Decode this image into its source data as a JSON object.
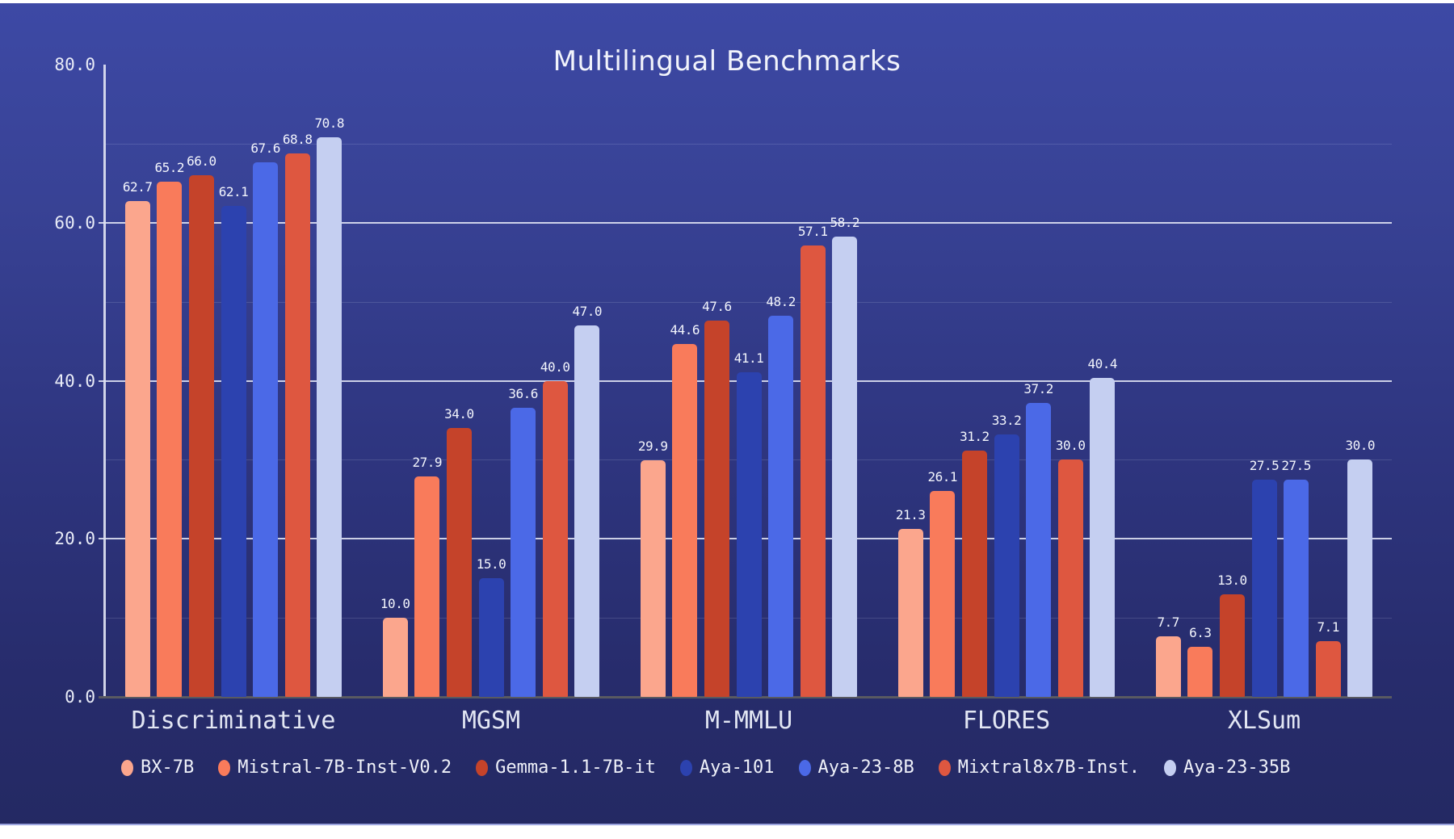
{
  "page": {
    "background": "#FFFFFF"
  },
  "card": {
    "gradient_top": "#3D49A5",
    "gradient_bottom": "#242963",
    "bottom_edge_line": "#9BA4DE"
  },
  "axis_style": {
    "y_axis_color": "#DEE2F2",
    "x_axis_color": "#595A61",
    "major_grid_color": "rgba(244,246,255,0.8)",
    "minor_grid_color": "rgba(244,246,255,0.14)",
    "text_color": "#E9ECF7"
  },
  "chart_data": {
    "type": "bar",
    "title": "Multilingual Benchmarks",
    "categories": [
      "Discriminative",
      "MGSM",
      "M-MMLU",
      "FLORES",
      "XLSum"
    ],
    "series": [
      {
        "name": "BX-7B",
        "color": "#FBA68D",
        "values": [
          62.7,
          10.0,
          29.9,
          21.3,
          7.7
        ]
      },
      {
        "name": "Mistral-7B-Inst-V0.2",
        "color": "#F97B5B",
        "values": [
          65.2,
          27.9,
          44.6,
          26.1,
          6.3
        ]
      },
      {
        "name": "Gemma-1.1-7B-it",
        "color": "#C5432A",
        "values": [
          66.0,
          34.0,
          47.6,
          31.2,
          13.0
        ]
      },
      {
        "name": "Aya-101",
        "color": "#2C42AF",
        "values": [
          62.1,
          15.0,
          41.1,
          33.2,
          27.5
        ]
      },
      {
        "name": "Aya-23-8B",
        "color": "#4B69E7",
        "values": [
          67.6,
          36.6,
          48.2,
          37.2,
          27.5
        ]
      },
      {
        "name": "Mixtral8x7B-Inst.",
        "color": "#DE5740",
        "values": [
          68.8,
          40.0,
          57.1,
          30.0,
          7.1
        ]
      },
      {
        "name": "Aya-23-35B",
        "color": "#C5CFF1",
        "values": [
          70.8,
          47.0,
          58.2,
          40.4,
          30.0
        ]
      }
    ],
    "ylim": [
      0,
      80
    ],
    "yticks": [
      {
        "value": 0,
        "label": "0.0"
      },
      {
        "value": 20,
        "label": "20.0"
      },
      {
        "value": 40,
        "label": "40.0"
      },
      {
        "value": 60,
        "label": "60.0"
      },
      {
        "value": 80,
        "label": "80.0"
      }
    ],
    "major_gridlines": [
      20,
      40,
      60
    ],
    "minor_gridlines": [
      10,
      30,
      50,
      70
    ],
    "grid": true,
    "legend_position": "bottom",
    "value_labels": true,
    "value_label_format": "one_decimal"
  }
}
